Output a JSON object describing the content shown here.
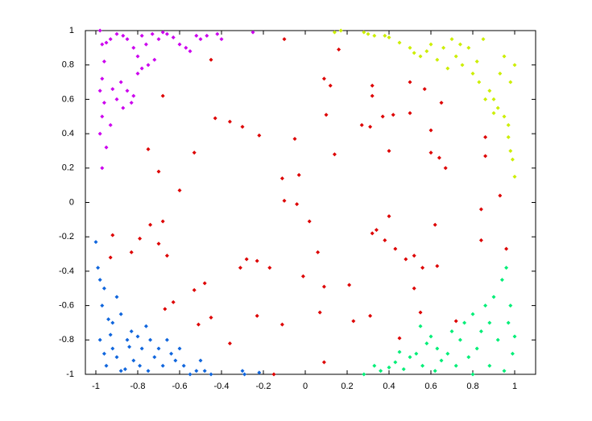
{
  "chart_data": {
    "type": "scatter",
    "xlim": [
      -1.05,
      1.1
    ],
    "ylim": [
      -1,
      1
    ],
    "xticks": [
      -1,
      -0.8,
      -0.6,
      -0.4,
      -0.2,
      0,
      0.2,
      0.4,
      0.6,
      0.8,
      1
    ],
    "yticks": [
      -1,
      -0.8,
      -0.6,
      -0.4,
      -0.2,
      0,
      0.2,
      0.4,
      0.6,
      0.8,
      1
    ],
    "grid": false,
    "series": [
      {
        "color": "#cc00ee",
        "x": [
          -0.98,
          -0.97,
          -0.95,
          -0.93,
          -0.9,
          -0.87,
          -0.85,
          -0.82,
          -0.8,
          -0.78,
          -0.76,
          -0.73,
          -0.7,
          -0.68,
          -0.66,
          -0.63,
          -0.6,
          -0.57,
          -0.55,
          -0.52,
          -0.5,
          -0.47,
          -0.42,
          -0.4,
          -0.25,
          -0.96,
          -0.97,
          -0.98,
          -0.96,
          -0.97,
          -0.98,
          -0.95,
          -0.97,
          -0.93,
          -0.9,
          -0.88,
          -0.85,
          -0.83,
          -0.82,
          -0.8,
          -0.78,
          -0.75,
          -0.72,
          -0.87,
          -0.92
        ],
        "values": [
          1,
          0.92,
          0.93,
          0.95,
          0.98,
          0.97,
          0.95,
          0.9,
          0.85,
          0.97,
          0.92,
          0.98,
          0.95,
          0.99,
          0.98,
          0.96,
          0.92,
          0.9,
          0.88,
          0.97,
          0.95,
          0.97,
          0.98,
          0.95,
          0.99,
          0.82,
          0.72,
          0.65,
          0.58,
          0.5,
          0.4,
          0.32,
          0.2,
          0.45,
          0.6,
          0.7,
          0.65,
          0.58,
          0.62,
          0.75,
          0.78,
          0.8,
          0.83,
          0.55,
          0.66
        ]
      },
      {
        "color": "#ccee00",
        "x": [
          0.17,
          0.14,
          0.28,
          0.3,
          0.33,
          0.38,
          0.4,
          0.45,
          0.5,
          0.52,
          0.55,
          0.58,
          0.6,
          0.63,
          0.66,
          0.7,
          0.72,
          0.75,
          0.78,
          0.8,
          0.83,
          0.85,
          0.88,
          0.9,
          0.92,
          0.95,
          0.97,
          0.98,
          0.99,
          1,
          0.97,
          0.93,
          0.95,
          0.98,
          1,
          0.9,
          0.86,
          0.82,
          0.74,
          0.68
        ],
        "values": [
          1,
          0.99,
          0.99,
          0.98,
          0.97,
          0.97,
          0.96,
          0.93,
          0.9,
          0.87,
          0.85,
          0.88,
          0.92,
          0.83,
          0.9,
          0.95,
          0.85,
          0.8,
          0.9,
          0.75,
          0.7,
          0.95,
          0.65,
          0.6,
          0.55,
          0.5,
          0.45,
          0.3,
          0.25,
          0.15,
          0.38,
          0.75,
          0.85,
          0.7,
          0.8,
          0.52,
          0.6,
          0.82,
          0.92,
          0.78
        ]
      },
      {
        "color": "#dd0000",
        "x": [
          -0.1,
          0.16,
          0.09,
          0.12,
          0.32,
          0.32,
          0.5,
          0.57,
          0.65,
          -0.68,
          -0.45,
          -0.43,
          -0.36,
          -0.3,
          -0.22,
          -0.05,
          0.1,
          0.37,
          0.42,
          0.5,
          0.27,
          0.31,
          0.6,
          0.86,
          0.14,
          0.4,
          0.6,
          0.64,
          0.86,
          0.67,
          -0.75,
          -0.53,
          -0.7,
          -0.11,
          -0.03,
          -0.6,
          -0.1,
          -0.04,
          0.02,
          0.4,
          0.62,
          0.84,
          0.93,
          -0.68,
          -0.74,
          -0.79,
          -0.7,
          -0.92,
          -0.83,
          -0.66,
          -0.93,
          -0.28,
          -0.31,
          -0.23,
          -0.17,
          -0.01,
          0.06,
          0.34,
          0.32,
          0.38,
          0.43,
          0.48,
          0.52,
          0.56,
          0.63,
          0.84,
          0.96,
          -0.53,
          -0.48,
          -0.63,
          -0.67,
          -0.51,
          -0.45,
          -0.23,
          -0.11,
          0.09,
          0.21,
          0.07,
          0.23,
          0.31,
          0.55,
          0.72,
          -0.36,
          -0.15,
          0.09,
          0.45,
          0.52
        ],
        "values": [
          0.95,
          0.89,
          0.72,
          0.68,
          0.68,
          0.62,
          0.7,
          0.66,
          0.58,
          0.62,
          0.83,
          0.49,
          0.47,
          0.44,
          0.39,
          0.37,
          0.51,
          0.5,
          0.51,
          0.52,
          0.45,
          0.44,
          0.42,
          0.38,
          0.28,
          0.3,
          0.29,
          0.26,
          0.27,
          0.2,
          0.31,
          0.29,
          0.18,
          0.14,
          0.16,
          0.07,
          0.01,
          -0.01,
          -0.11,
          -0.08,
          -0.13,
          -0.04,
          0.04,
          -0.11,
          -0.13,
          -0.21,
          -0.24,
          -0.19,
          -0.29,
          -0.31,
          -0.32,
          -0.33,
          -0.38,
          -0.34,
          -0.38,
          -0.43,
          -0.29,
          -0.16,
          -0.18,
          -0.22,
          -0.27,
          -0.33,
          -0.31,
          -0.38,
          -0.37,
          -0.22,
          -0.27,
          -0.51,
          -0.47,
          -0.58,
          -0.62,
          -0.71,
          -0.67,
          -0.66,
          -0.71,
          -0.49,
          -0.48,
          -0.64,
          -0.69,
          -0.66,
          -0.64,
          -0.69,
          -0.82,
          -1,
          -0.93,
          -0.79,
          -0.5
        ]
      },
      {
        "color": "#1066dd",
        "x": [
          -1,
          -0.99,
          -0.98,
          -0.96,
          -0.97,
          -0.94,
          -0.92,
          -0.9,
          -0.88,
          -0.98,
          -0.96,
          -0.95,
          -0.92,
          -0.9,
          -0.88,
          -0.85,
          -0.83,
          -0.8,
          -0.78,
          -0.76,
          -0.74,
          -0.72,
          -0.7,
          -0.68,
          -0.66,
          -0.64,
          -0.62,
          -0.6,
          -0.58,
          -0.55,
          -0.52,
          -0.5,
          -0.48,
          -0.45,
          -0.3,
          -0.29,
          -0.22,
          -0.82,
          -0.86,
          -0.79,
          -0.75,
          -0.93,
          -0.84
        ],
        "values": [
          -0.23,
          -0.38,
          -0.45,
          -0.5,
          -0.6,
          -0.68,
          -0.7,
          -0.55,
          -0.65,
          -0.8,
          -0.88,
          -0.95,
          -0.85,
          -0.9,
          -0.98,
          -0.8,
          -0.75,
          -0.78,
          -0.85,
          -0.72,
          -0.8,
          -0.9,
          -0.85,
          -0.95,
          -0.8,
          -0.88,
          -0.92,
          -0.85,
          -0.95,
          -1,
          -0.98,
          -0.92,
          -0.98,
          -1,
          -0.98,
          -1,
          -0.99,
          -0.92,
          -0.97,
          -0.95,
          -0.98,
          -0.77,
          -0.84
        ]
      },
      {
        "color": "#00ee77",
        "x": [
          0.28,
          0.33,
          0.36,
          0.4,
          0.43,
          0.47,
          0.5,
          0.53,
          0.56,
          0.58,
          0.6,
          0.63,
          0.65,
          0.68,
          0.7,
          0.72,
          0.74,
          0.76,
          0.78,
          0.8,
          0.82,
          0.84,
          0.86,
          0.88,
          0.9,
          0.92,
          0.94,
          0.96,
          0.98,
          1,
          0.97,
          0.99,
          0.95,
          0.62,
          0.55,
          0.88,
          0.8,
          0.45
        ],
        "values": [
          -1,
          -0.95,
          -0.98,
          -0.96,
          -0.93,
          -0.97,
          -0.9,
          -0.88,
          -0.95,
          -0.82,
          -0.78,
          -0.85,
          -0.92,
          -0.88,
          -0.75,
          -0.95,
          -0.8,
          -0.7,
          -0.9,
          -0.65,
          -0.85,
          -0.75,
          -0.6,
          -0.95,
          -0.55,
          -0.8,
          -0.45,
          -0.38,
          -0.6,
          -0.78,
          -0.7,
          -0.88,
          -0.98,
          -0.98,
          -0.72,
          -0.7,
          -1,
          -0.87
        ]
      }
    ]
  }
}
